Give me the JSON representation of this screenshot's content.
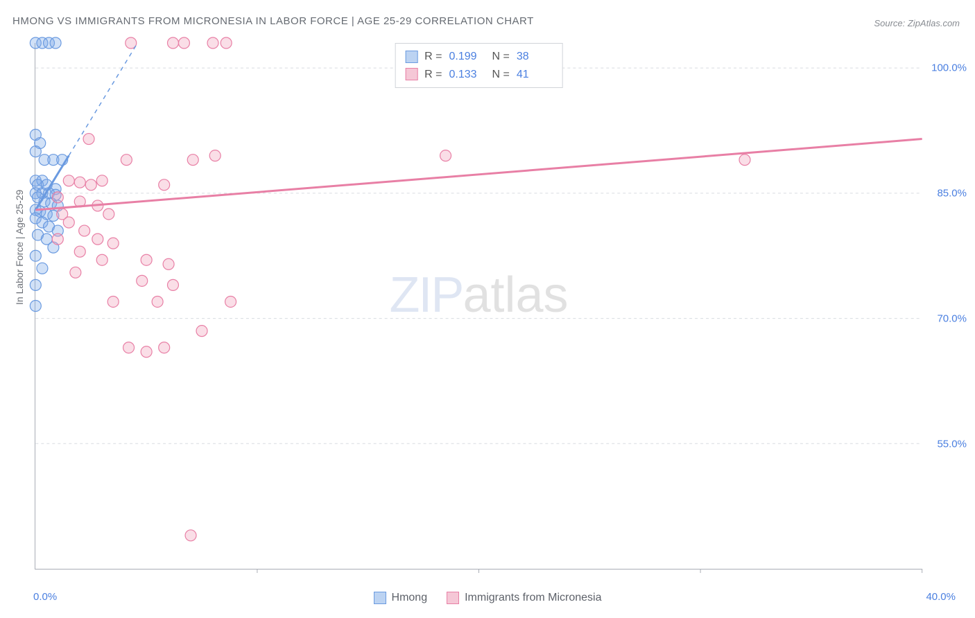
{
  "title": "HMONG VS IMMIGRANTS FROM MICRONESIA IN LABOR FORCE | AGE 25-29 CORRELATION CHART",
  "source": "Source: ZipAtlas.com",
  "y_axis_title": "In Labor Force | Age 25-29",
  "watermark_a": "ZIP",
  "watermark_b": "atlas",
  "chart": {
    "type": "scatter-with-regression",
    "xlim": [
      0,
      40
    ],
    "ylim": [
      40,
      103
    ],
    "x_ticks": [
      0,
      10,
      20,
      30,
      40
    ],
    "x_tick_labels": [
      "0.0%",
      "",
      "",
      "",
      "40.0%"
    ],
    "y_ticks": [
      55,
      70,
      85,
      100
    ],
    "y_tick_labels": [
      "55.0%",
      "70.0%",
      "85.0%",
      "100.0%"
    ],
    "grid_color": "#d8dbe0",
    "axis_color": "#a9adb5",
    "background": "#ffffff",
    "label_color": "#4a7fe0",
    "label_fontsize": 15,
    "series": [
      {
        "name": "Hmong",
        "color_fill": "rgba(124,168,232,0.35)",
        "color_stroke": "#6a9ae0",
        "swatch_fill": "#bcd3f2",
        "swatch_stroke": "#6a9ae0",
        "R": "0.199",
        "N": "38",
        "marker_radius": 8,
        "points": [
          [
            0.0,
            103
          ],
          [
            0.3,
            103
          ],
          [
            0.6,
            103
          ],
          [
            0.9,
            103
          ],
          [
            0.0,
            92
          ],
          [
            0.2,
            91
          ],
          [
            0.0,
            90
          ],
          [
            0.4,
            89
          ],
          [
            0.8,
            89
          ],
          [
            1.2,
            89
          ],
          [
            0.0,
            86.5
          ],
          [
            0.3,
            86.5
          ],
          [
            0.1,
            86
          ],
          [
            0.5,
            86
          ],
          [
            0.9,
            85.5
          ],
          [
            0.0,
            85
          ],
          [
            0.3,
            85
          ],
          [
            0.6,
            85
          ],
          [
            0.9,
            84.8
          ],
          [
            0.1,
            84.5
          ],
          [
            0.4,
            84
          ],
          [
            0.7,
            83.8
          ],
          [
            1.0,
            83.5
          ],
          [
            0.0,
            83
          ],
          [
            0.2,
            82.8
          ],
          [
            0.5,
            82.5
          ],
          [
            0.8,
            82.3
          ],
          [
            0.0,
            82
          ],
          [
            0.3,
            81.5
          ],
          [
            0.6,
            81
          ],
          [
            1.0,
            80.5
          ],
          [
            0.1,
            80
          ],
          [
            0.5,
            79.5
          ],
          [
            0.8,
            78.5
          ],
          [
            0.0,
            77.5
          ],
          [
            0.3,
            76
          ],
          [
            0.0,
            74
          ],
          [
            0.0,
            71.5
          ]
        ],
        "regression": {
          "x1": 0.0,
          "y1": 83,
          "x2": 1.5,
          "y2": 89.5
        },
        "extrapolation": {
          "x1": 1.5,
          "y1": 89.5,
          "x2": 4.6,
          "y2": 103
        }
      },
      {
        "name": "Immigrants from Micronesia",
        "color_fill": "rgba(240,160,185,0.35)",
        "color_stroke": "#e87fa5",
        "swatch_fill": "#f5c7d6",
        "swatch_stroke": "#e87fa5",
        "R": "0.133",
        "N": "41",
        "marker_radius": 8,
        "points": [
          [
            4.3,
            103
          ],
          [
            6.2,
            103
          ],
          [
            6.7,
            103
          ],
          [
            8.0,
            103
          ],
          [
            8.6,
            103
          ],
          [
            2.4,
            91.5
          ],
          [
            4.1,
            89
          ],
          [
            7.1,
            89
          ],
          [
            8.1,
            89.5
          ],
          [
            18.5,
            89.5
          ],
          [
            32.0,
            89
          ],
          [
            1.5,
            86.5
          ],
          [
            2.0,
            86.3
          ],
          [
            2.5,
            86
          ],
          [
            3.0,
            86.5
          ],
          [
            5.8,
            86
          ],
          [
            1.0,
            84.5
          ],
          [
            2.0,
            84
          ],
          [
            2.8,
            83.5
          ],
          [
            1.2,
            82.5
          ],
          [
            3.3,
            82.5
          ],
          [
            1.5,
            81.5
          ],
          [
            2.2,
            80.5
          ],
          [
            1.0,
            79.5
          ],
          [
            2.8,
            79.5
          ],
          [
            3.5,
            79
          ],
          [
            2.0,
            78
          ],
          [
            3.0,
            77
          ],
          [
            1.8,
            75.5
          ],
          [
            5.0,
            77
          ],
          [
            6.0,
            76.5
          ],
          [
            4.8,
            74.5
          ],
          [
            6.2,
            74
          ],
          [
            3.5,
            72
          ],
          [
            5.5,
            72
          ],
          [
            8.8,
            72
          ],
          [
            7.5,
            68.5
          ],
          [
            4.2,
            66.5
          ],
          [
            5.0,
            66
          ],
          [
            5.8,
            66.5
          ],
          [
            7.0,
            44
          ]
        ],
        "regression": {
          "x1": 0.0,
          "y1": 83,
          "x2": 40,
          "y2": 91.5
        }
      }
    ]
  },
  "legend_bottom": [
    {
      "label": "Hmong",
      "fill": "#bcd3f2",
      "stroke": "#6a9ae0"
    },
    {
      "label": "Immigrants from Micronesia",
      "fill": "#f5c7d6",
      "stroke": "#e87fa5"
    }
  ],
  "stats_labels": {
    "R": "R =",
    "N": "N ="
  }
}
